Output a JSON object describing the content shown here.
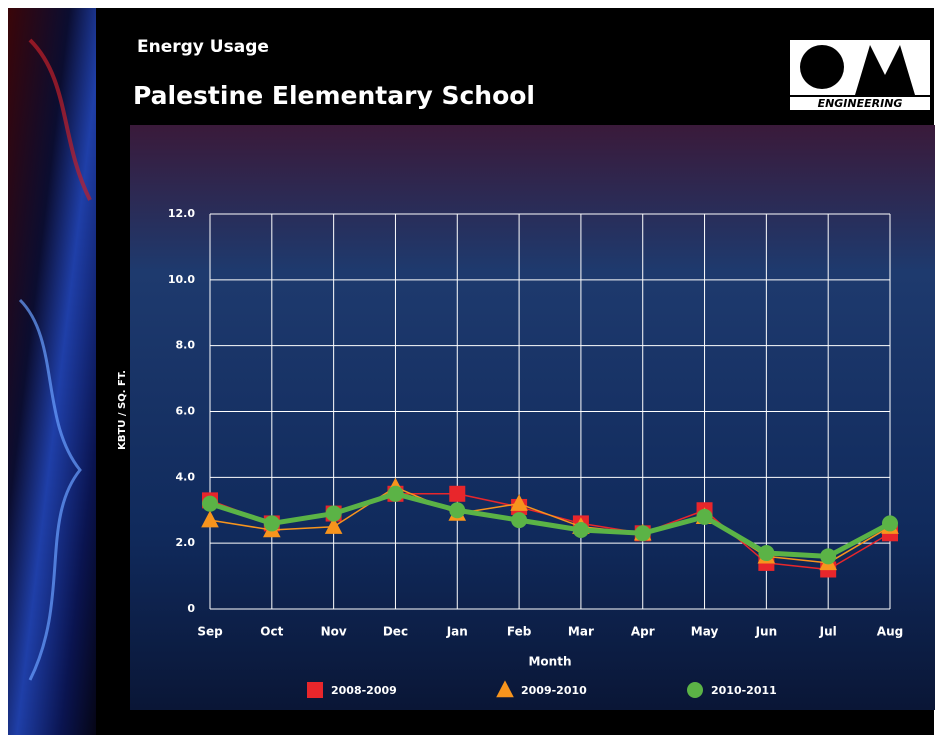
{
  "header": {
    "subtitle": "Energy Usage",
    "title": "Palestine Elementary School",
    "logo_text": "ENGINEERING"
  },
  "chart_data": {
    "type": "line",
    "categories": [
      "Sep",
      "Oct",
      "Nov",
      "Dec",
      "Jan",
      "Feb",
      "Mar",
      "Apr",
      "May",
      "Jun",
      "Jul",
      "Aug"
    ],
    "x_label": "Month",
    "y_label": "KBTU / SQ. FT.",
    "ylim": [
      0,
      12
    ],
    "yticks": [
      0,
      {
        "value": 2,
        "label": "2.0"
      },
      {
        "value": 4,
        "label": "4.0"
      },
      {
        "value": 6,
        "label": "6.0"
      },
      {
        "value": 8,
        "label": "8.0"
      },
      {
        "value": 10,
        "label": "10.0"
      },
      {
        "value": 12,
        "label": "12.0"
      }
    ],
    "grid": true,
    "series": [
      {
        "name": "2008-2009",
        "color": "#e8262b",
        "marker": "square",
        "line_width": 1.5,
        "values": [
          3.3,
          2.6,
          2.9,
          3.5,
          3.5,
          3.1,
          2.6,
          2.3,
          3.0,
          1.4,
          1.2,
          2.3
        ]
      },
      {
        "name": "2009-2010",
        "color": "#f7941d",
        "marker": "triangle",
        "line_width": 1.5,
        "values": [
          2.7,
          2.4,
          2.5,
          3.7,
          2.9,
          3.2,
          2.5,
          2.3,
          2.8,
          1.6,
          1.4,
          2.5
        ]
      },
      {
        "name": "2010-2011",
        "color": "#5bb346",
        "marker": "circle",
        "line_width": 5,
        "values": [
          3.2,
          2.6,
          2.9,
          3.5,
          3.0,
          2.7,
          2.4,
          2.3,
          2.8,
          1.7,
          1.6,
          2.6
        ]
      }
    ]
  }
}
